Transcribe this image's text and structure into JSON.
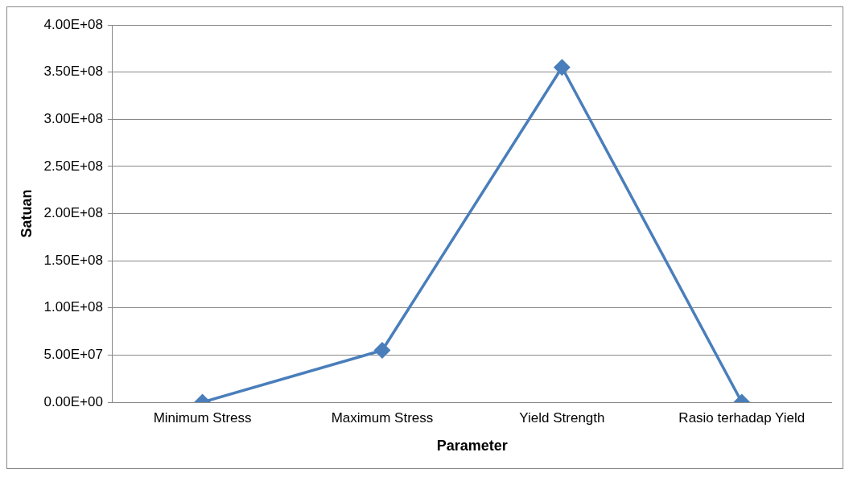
{
  "chart_data": {
    "type": "line",
    "xlabel": "Parameter",
    "ylabel": "Satuan",
    "categories": [
      "Minimum Stress",
      "Maximum Stress",
      "Yield Strength",
      "Rasio terhadap Yield"
    ],
    "series": [
      {
        "color": "#4a7ebb",
        "values": [
          0,
          55000000,
          355000000,
          0
        ]
      }
    ],
    "ylim": [
      0,
      400000000
    ],
    "yticks": [
      {
        "value": 0,
        "label": "0.00E+00"
      },
      {
        "value": 50000000,
        "label": "5.00E+07"
      },
      {
        "value": 100000000,
        "label": "1.00E+08"
      },
      {
        "value": 150000000,
        "label": "1.50E+08"
      },
      {
        "value": 200000000,
        "label": "2.00E+08"
      },
      {
        "value": 250000000,
        "label": "2.50E+08"
      },
      {
        "value": 300000000,
        "label": "3.00E+08"
      },
      {
        "value": 350000000,
        "label": "3.50E+08"
      },
      {
        "value": 400000000,
        "label": "4.00E+08"
      }
    ],
    "grid": "y",
    "marker": "diamond",
    "line_style": "solid",
    "legend": false
  }
}
